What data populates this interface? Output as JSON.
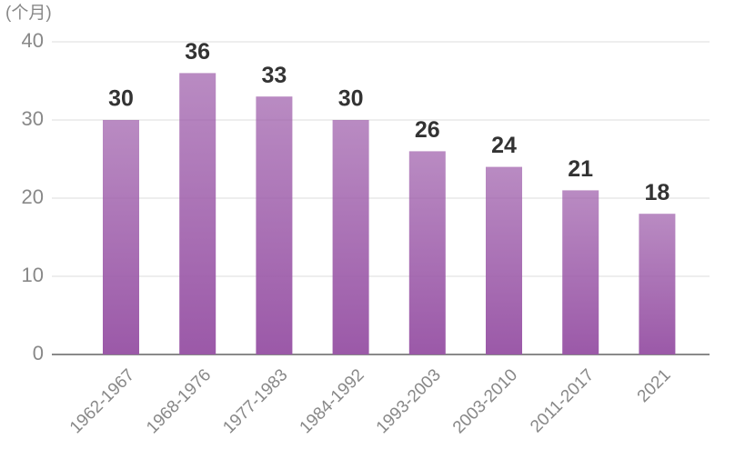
{
  "chart_data": {
    "type": "bar",
    "y_label": "(个月)",
    "categories": [
      "1962-1967",
      "1968-1976",
      "1977-1983",
      "1984-1992",
      "1993-2003",
      "2003-2010",
      "2011-2017",
      "2021"
    ],
    "values": [
      30,
      36,
      33,
      30,
      26,
      24,
      21,
      18
    ],
    "color": "#9b59a8",
    "ylim": [
      0,
      40
    ],
    "yticks": [
      0,
      10,
      20,
      30,
      40
    ],
    "grid": true
  }
}
